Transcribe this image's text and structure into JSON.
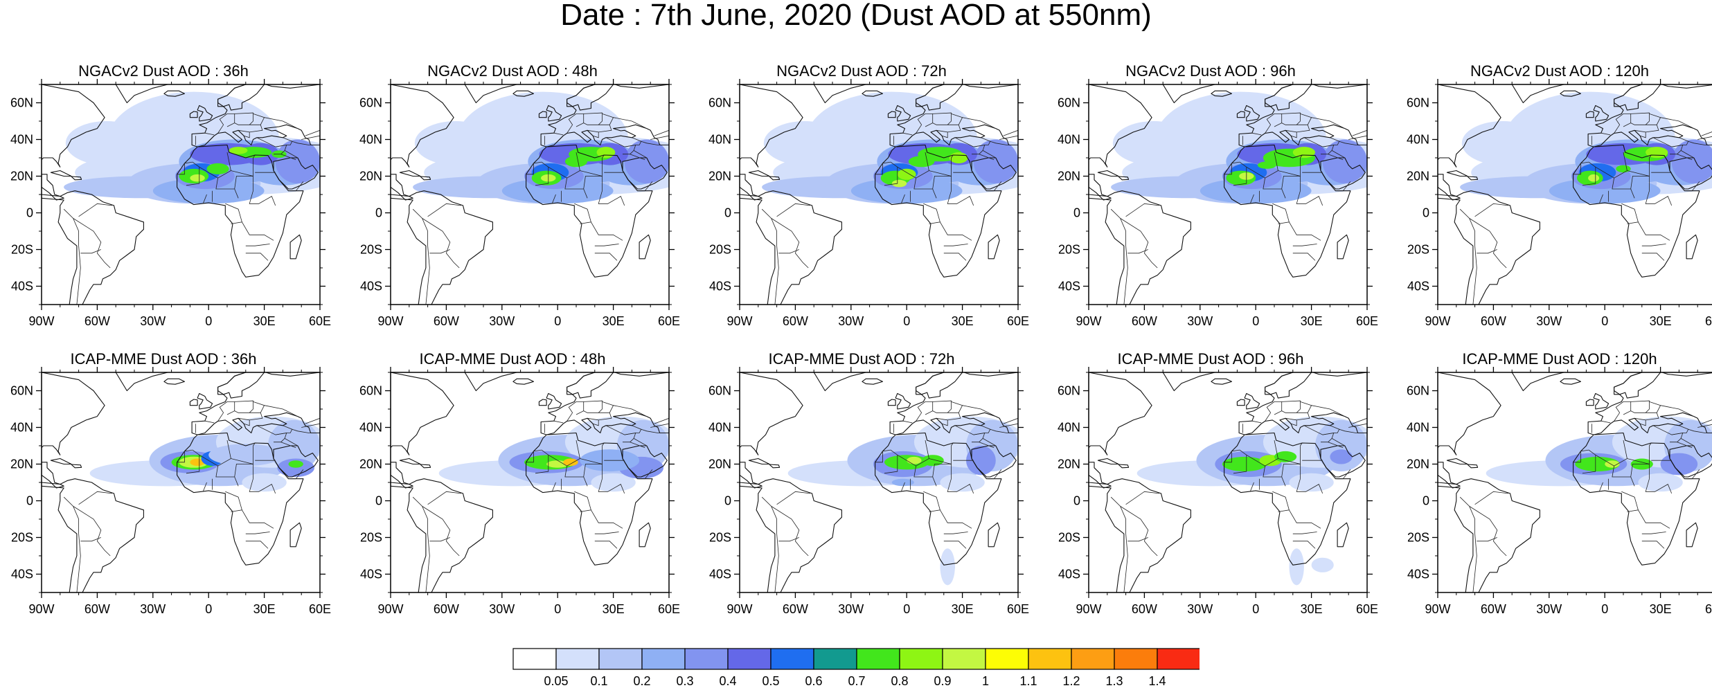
{
  "figure": {
    "title": "Date : 7th June, 2020 (Dust AOD at 550nm)"
  },
  "axes": {
    "lat_labels": [
      "60N",
      "40N",
      "20N",
      "0",
      "20S",
      "40S"
    ],
    "lat_values": [
      60,
      40,
      20,
      0,
      -20,
      -40
    ],
    "lon_labels": [
      "90W",
      "60W",
      "30W",
      "0",
      "30E",
      "60E"
    ],
    "lon_values": [
      -90,
      -60,
      -30,
      0,
      30,
      60
    ],
    "lon_range": [
      -90,
      60
    ],
    "lat_range": [
      -50,
      70
    ]
  },
  "panels": [
    {
      "title": "NGACv2 Dust AOD : 36h",
      "model": "NGACv2",
      "lead": 36
    },
    {
      "title": "NGACv2 Dust AOD : 48h",
      "model": "NGACv2",
      "lead": 48
    },
    {
      "title": "NGACv2 Dust AOD : 72h",
      "model": "NGACv2",
      "lead": 72
    },
    {
      "title": "NGACv2 Dust AOD : 96h",
      "model": "NGACv2",
      "lead": 96
    },
    {
      "title": "NGACv2 Dust AOD : 120h",
      "model": "NGACv2",
      "lead": 120
    },
    {
      "title": "ICAP-MME Dust AOD : 36h",
      "model": "ICAP-MME",
      "lead": 36
    },
    {
      "title": "ICAP-MME Dust AOD : 48h",
      "model": "ICAP-MME",
      "lead": 48
    },
    {
      "title": "ICAP-MME Dust AOD : 72h",
      "model": "ICAP-MME",
      "lead": 72
    },
    {
      "title": "ICAP-MME Dust AOD : 96h",
      "model": "ICAP-MME",
      "lead": 96
    },
    {
      "title": "ICAP-MME Dust AOD : 120h",
      "model": "ICAP-MME",
      "lead": 120
    }
  ],
  "colorbar": {
    "levels": [
      "0.05",
      "0.1",
      "0.2",
      "0.3",
      "0.4",
      "0.5",
      "0.6",
      "0.7",
      "0.8",
      "0.9",
      "1",
      "1.1",
      "1.2",
      "1.3",
      "1.4"
    ],
    "colors": [
      "#ffffff",
      "#d4e0fb",
      "#b3c6f6",
      "#8fb0f4",
      "#8294f0",
      "#6468e8",
      "#1f6ef0",
      "#129a8f",
      "#42e61c",
      "#8ef514",
      "#c3f742",
      "#fdfd05",
      "#fdc210",
      "#fd9e13",
      "#fb7d0c",
      "#f92b13"
    ]
  }
}
